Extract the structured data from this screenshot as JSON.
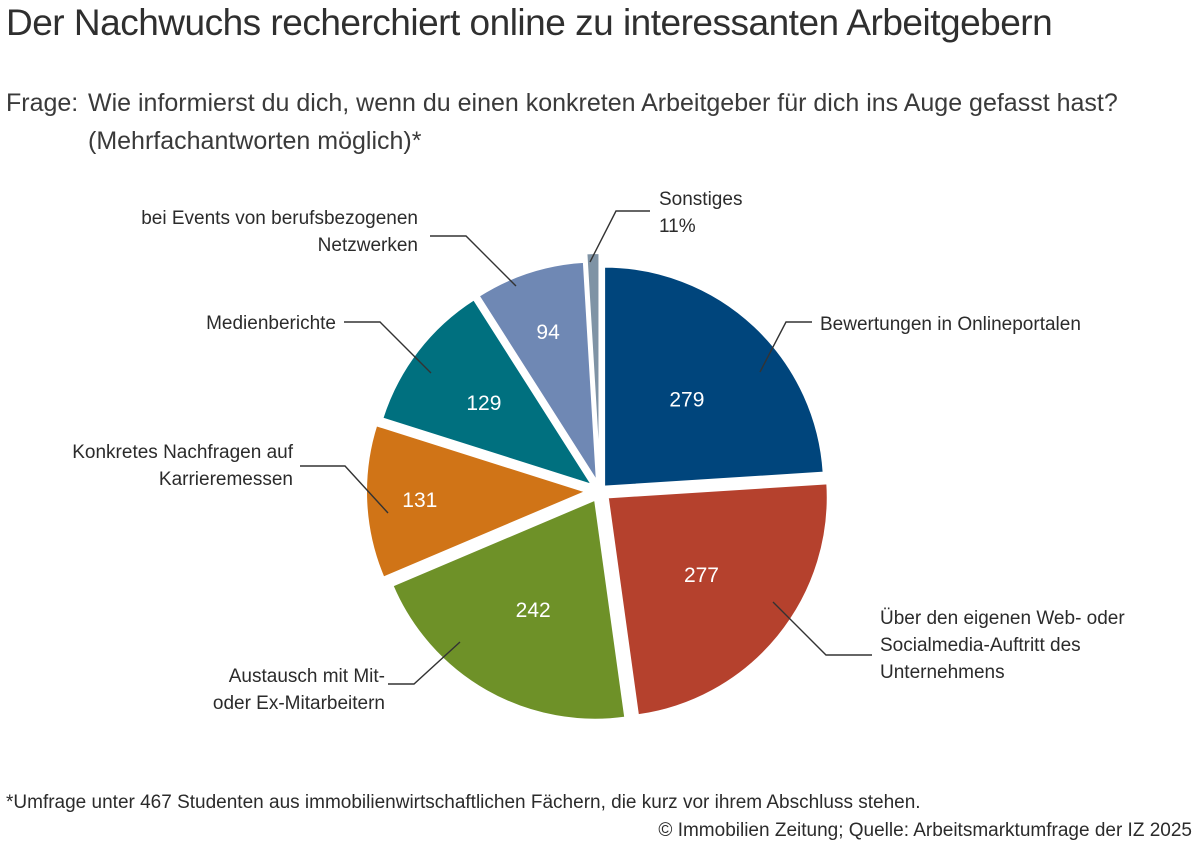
{
  "header": {
    "title": "Der Nachwuchs recherchiert online zu interessanten Arbeitgebern",
    "question_label": "Frage:",
    "question_text": "Wie informierst du dich, wenn du einen konkreten Arbeitgeber für dich ins Auge gefasst hast? (Mehrfachantworten möglich)*"
  },
  "footer": {
    "footnote": "*Umfrage unter 467 Studenten aus immobilienwirtschaftlichen Fächern, die kurz vor ihrem Abschluss stehen.",
    "source": "© Immobilien Zeitung; Quelle: Arbeitsmarktumfrage der IZ 2025"
  },
  "chart_data": {
    "type": "pie",
    "title": "",
    "slices": [
      {
        "label": [
          "Bewertungen in Onlineportalen"
        ],
        "value": 279,
        "value_text": "279",
        "color": "#00457c"
      },
      {
        "label": [
          "Über den eigenen Web- oder",
          "Socialmedia-Auftritt des",
          "Unternehmens"
        ],
        "value": 277,
        "value_text": "277",
        "color": "#b5412d"
      },
      {
        "label": [
          "Austausch mit Mit-",
          "oder Ex-Mitarbeitern"
        ],
        "value": 242,
        "value_text": "242",
        "color": "#6e9128"
      },
      {
        "label": [
          "Konkretes Nachfragen auf",
          "Karrieremessen"
        ],
        "value": 131,
        "value_text": "131",
        "color": "#d07417"
      },
      {
        "label": [
          "Medienberichte"
        ],
        "value": 129,
        "value_text": "129",
        "color": "#00707f"
      },
      {
        "label": [
          "bei Events von berufsbezogenen",
          "Netzwerken"
        ],
        "value": 94,
        "value_text": "94",
        "color": "#6f88b4"
      },
      {
        "label": [
          "Sonstiges",
          "11%"
        ],
        "value": 11,
        "value_text": "",
        "color": "#7f93a5"
      }
    ]
  }
}
